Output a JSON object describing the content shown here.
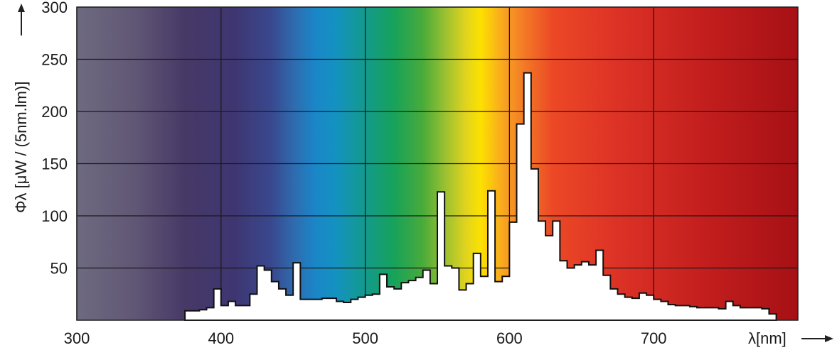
{
  "chart_data": {
    "type": "area",
    "xlabel": "λ[nm]",
    "ylabel": "Φλ [μW / (5nm.lm)]",
    "xlim": [
      300,
      800
    ],
    "ylim": [
      0,
      300
    ],
    "x_ticks": [
      300,
      400,
      500,
      600,
      700
    ],
    "y_ticks": [
      50,
      100,
      150,
      200,
      250,
      300
    ],
    "grid": true,
    "background": "visible spectrum color gradient",
    "series": [
      {
        "step": 5,
        "x": [
          375,
          380,
          385,
          390,
          395,
          400,
          405,
          410,
          415,
          420,
          425,
          430,
          435,
          440,
          445,
          450,
          455,
          460,
          465,
          470,
          475,
          480,
          485,
          490,
          495,
          500,
          505,
          510,
          515,
          520,
          525,
          530,
          535,
          540,
          545,
          550,
          555,
          560,
          565,
          570,
          575,
          580,
          585,
          590,
          595,
          600,
          605,
          610,
          615,
          620,
          625,
          630,
          635,
          640,
          645,
          650,
          655,
          660,
          665,
          670,
          675,
          680,
          685,
          690,
          695,
          700,
          705,
          710,
          715,
          720,
          725,
          730,
          735,
          740,
          745,
          750,
          755,
          760,
          765,
          770,
          775,
          780
        ],
        "values": [
          9,
          9,
          10,
          12,
          30,
          14,
          18,
          14,
          14,
          25,
          52,
          48,
          37,
          30,
          24,
          55,
          20,
          20,
          20,
          21,
          21,
          18,
          17,
          20,
          22,
          24,
          25,
          44,
          32,
          30,
          36,
          38,
          41,
          48,
          35,
          123,
          52,
          50,
          29,
          35,
          64,
          42,
          124,
          37,
          42,
          94,
          188,
          237,
          145,
          95,
          81,
          95,
          57,
          50,
          53,
          56,
          53,
          67,
          43,
          30,
          25,
          22,
          21,
          26,
          24,
          20,
          18,
          15,
          14,
          14,
          13,
          12,
          12,
          12,
          11,
          18,
          14,
          12,
          12,
          12,
          11,
          6
        ]
      }
    ]
  }
}
